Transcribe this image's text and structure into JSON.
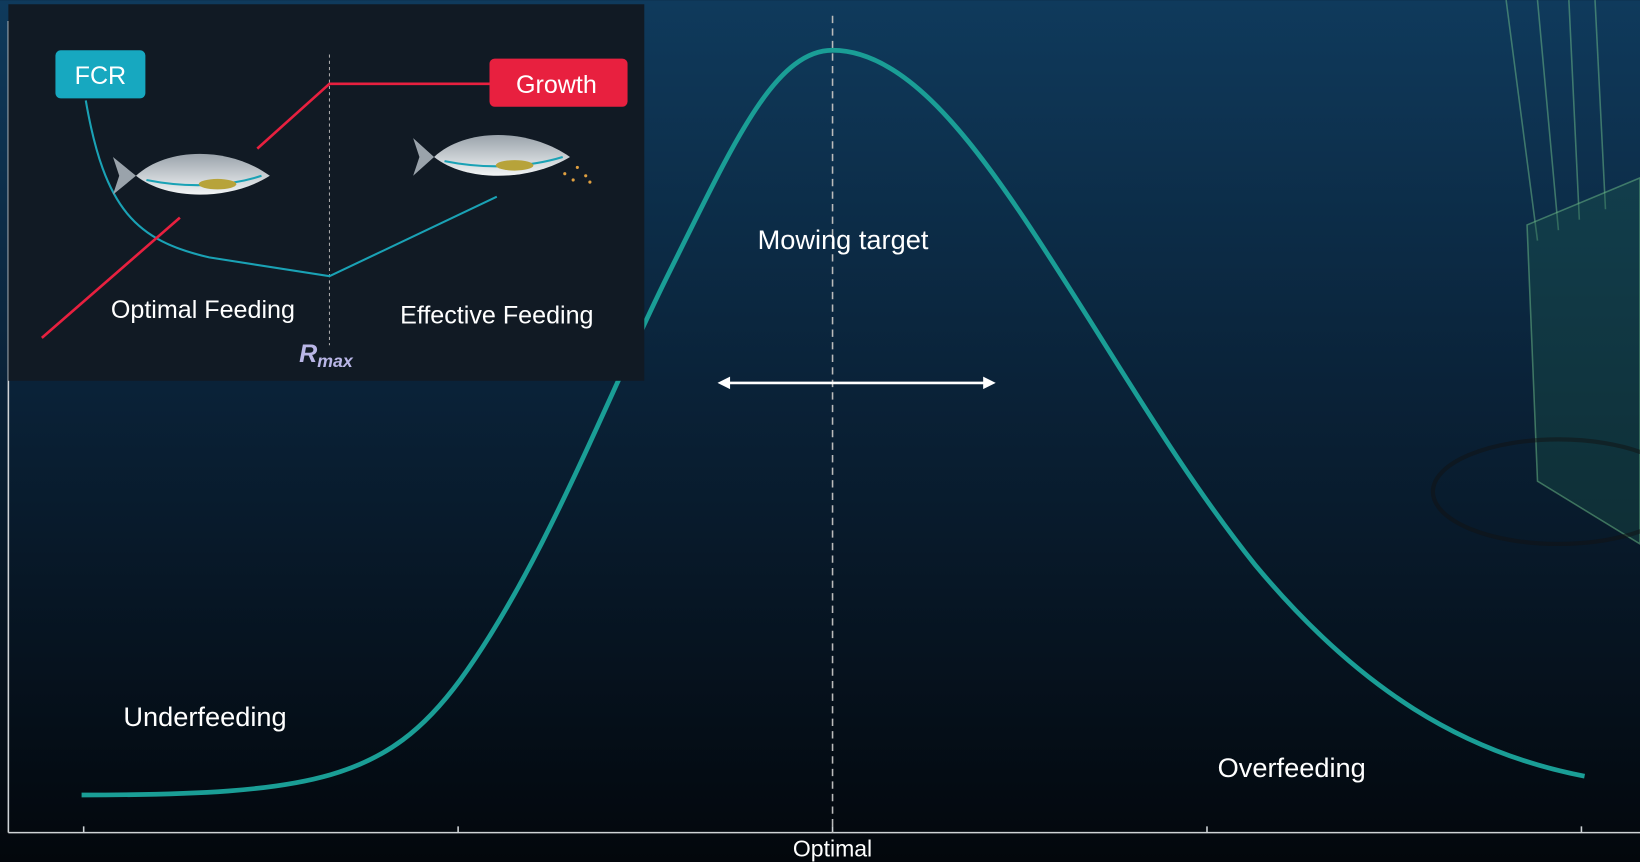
{
  "inset": {
    "fcr_label": "FCR",
    "growth_label": "Growth",
    "left_label": "Optimal Feeding",
    "right_label": "Effective Feeding",
    "threshold": {
      "symbol": "R",
      "subscript": "max"
    }
  },
  "main": {
    "center_label": "Mowing target",
    "left_label": "Underfeeding",
    "right_label": "Overfeeding",
    "x_axis_label": "Optimal"
  }
}
